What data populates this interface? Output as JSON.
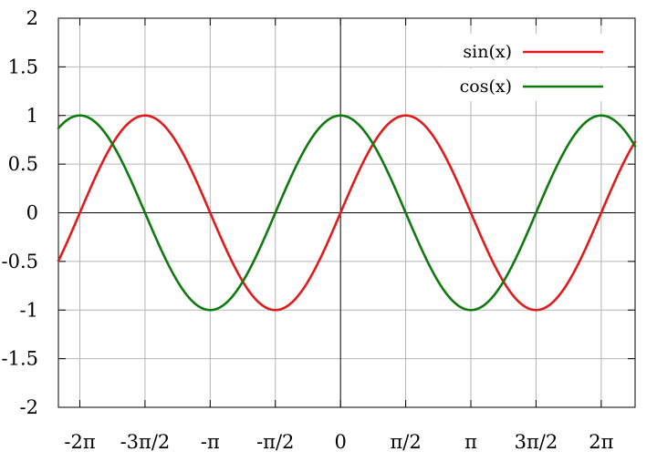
{
  "chart_data": {
    "type": "line",
    "title": "",
    "xlabel": "",
    "ylabel": "",
    "xlim": [
      -6.8,
      7.1
    ],
    "ylim": [
      -2,
      2
    ],
    "grid": true,
    "legend_position": "top-right",
    "x_ticks": [
      {
        "value": -6.283185307,
        "label": "-2π"
      },
      {
        "value": -4.71238898,
        "label": "-3π/2"
      },
      {
        "value": -3.141592654,
        "label": "-π"
      },
      {
        "value": -1.570796327,
        "label": "-π/2"
      },
      {
        "value": 0,
        "label": "0"
      },
      {
        "value": 1.570796327,
        "label": "π/2"
      },
      {
        "value": 3.141592654,
        "label": "π"
      },
      {
        "value": 4.71238898,
        "label": "3π/2"
      },
      {
        "value": 6.283185307,
        "label": "2π"
      }
    ],
    "y_ticks": [
      {
        "value": 2,
        "label": "2"
      },
      {
        "value": 1.5,
        "label": "1.5"
      },
      {
        "value": 1,
        "label": "1"
      },
      {
        "value": 0.5,
        "label": "0.5"
      },
      {
        "value": 0,
        "label": "0"
      },
      {
        "value": -0.5,
        "label": "-0.5"
      },
      {
        "value": -1,
        "label": "-1"
      },
      {
        "value": -1.5,
        "label": "-1.5"
      },
      {
        "value": -2,
        "label": "-2"
      }
    ],
    "series": [
      {
        "name": "sin(x)",
        "function": "sin",
        "color": "#e01b1b"
      },
      {
        "name": "cos(x)",
        "function": "cos",
        "color": "#0f7a0f"
      }
    ]
  }
}
